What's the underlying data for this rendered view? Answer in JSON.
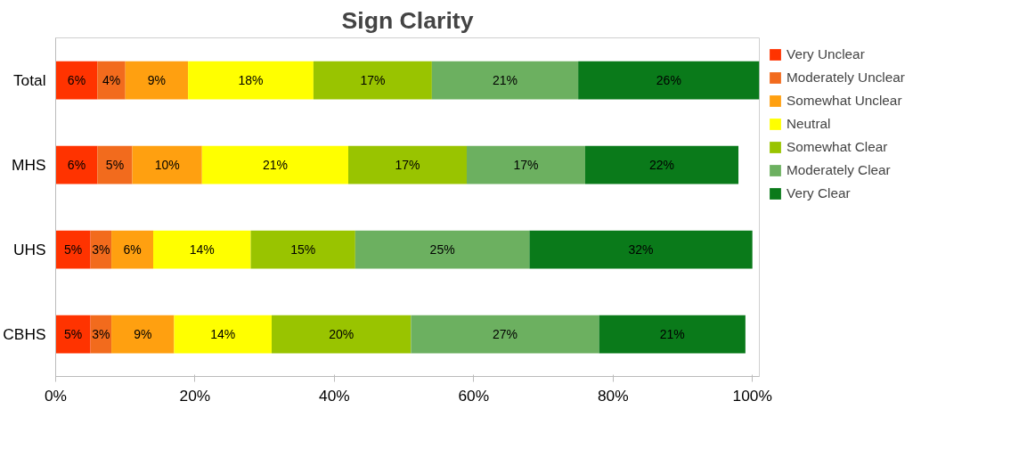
{
  "chart_data": {
    "type": "bar",
    "orientation": "horizontal",
    "stacked": true,
    "title": "Sign Clarity",
    "categories": [
      "Total",
      "MHS",
      "UHS",
      "CBHS"
    ],
    "series": [
      {
        "name": "Very Unclear",
        "color": "#ff3300",
        "values": [
          6,
          6,
          5,
          5
        ],
        "value_labels": [
          "6%",
          "6%",
          "5%",
          "5%"
        ]
      },
      {
        "name": "Moderately Unclear",
        "color": "#f26b1d",
        "values": [
          4,
          5,
          3,
          3
        ],
        "value_labels": [
          "4%",
          "5%",
          "3%",
          "3%"
        ]
      },
      {
        "name": "Somewhat Unclear",
        "color": "#ffa010",
        "values": [
          9,
          10,
          6,
          9
        ],
        "value_labels": [
          "9%",
          "10%",
          "6%",
          "9%"
        ]
      },
      {
        "name": "Neutral",
        "color": "#ffff00",
        "values": [
          18,
          21,
          14,
          14
        ],
        "value_labels": [
          "18%",
          "21%",
          "14%",
          "14%"
        ]
      },
      {
        "name": "Somewhat Clear",
        "color": "#99c400",
        "values": [
          17,
          17,
          15,
          20
        ],
        "value_labels": [
          "17%",
          "17%",
          "15%",
          "20%"
        ]
      },
      {
        "name": "Moderately Clear",
        "color": "#6cb060",
        "values": [
          21,
          17,
          25,
          27
        ],
        "value_labels": [
          "21%",
          "17%",
          "25%",
          "27%"
        ]
      },
      {
        "name": "Very Clear",
        "color": "#0a7a1a",
        "values": [
          26,
          22,
          32,
          21
        ],
        "value_labels": [
          "26%",
          "22%",
          "32%",
          "21%"
        ]
      }
    ],
    "xlim": [
      0,
      101
    ],
    "xticks": [
      {
        "value": 0,
        "label": "0%"
      },
      {
        "value": 20,
        "label": "20%"
      },
      {
        "value": 40,
        "label": "40%"
      },
      {
        "value": 60,
        "label": "60%"
      },
      {
        "value": 80,
        "label": "80%"
      },
      {
        "value": 100,
        "label": "100%"
      }
    ],
    "grid": false,
    "legend": "right"
  }
}
